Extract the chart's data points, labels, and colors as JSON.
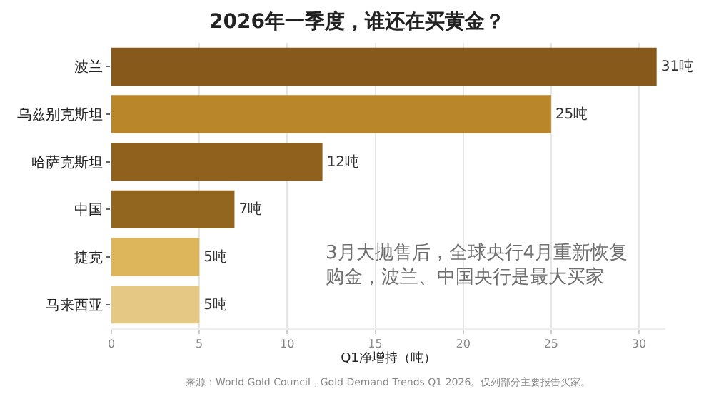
{
  "chart_data": {
    "type": "bar",
    "orientation": "horizontal",
    "title": "2026年一季度，谁还在买黄金？",
    "categories": [
      "波兰",
      "乌兹别克斯坦",
      "哈萨克斯坦",
      "中国",
      "捷克",
      "马来西亚"
    ],
    "values": [
      31,
      25,
      12,
      7,
      5,
      5
    ],
    "value_labels": [
      "31吨",
      "25吨",
      "12吨",
      "7吨",
      "5吨",
      "5吨"
    ],
    "colors": [
      "#87591a",
      "#b9872a",
      "#8f611d",
      "#93661f",
      "#ddb65c",
      "#e6c885"
    ],
    "xlabel": "Q1净增持（吨）",
    "xlim": [
      0,
      31.5
    ],
    "xticks": [
      0,
      5,
      10,
      15,
      20,
      25,
      30
    ],
    "grid": "x",
    "annotations": [
      "3月大抛售后，全球央行4月重新恢复购金，波兰、中国央行是最大买家",
      "来源：World Gold Council，Gold Demand Trends Q1 2026。仅列部分主要报告买家。"
    ]
  }
}
